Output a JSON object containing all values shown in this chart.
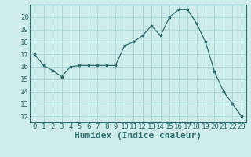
{
  "x": [
    0,
    1,
    2,
    3,
    4,
    5,
    6,
    7,
    8,
    9,
    10,
    11,
    12,
    13,
    14,
    15,
    16,
    17,
    18,
    19,
    20,
    21,
    22,
    23
  ],
  "y": [
    17.0,
    16.1,
    15.7,
    15.2,
    16.0,
    16.1,
    16.1,
    16.1,
    16.1,
    16.1,
    17.7,
    18.0,
    18.5,
    19.3,
    18.5,
    20.0,
    20.6,
    20.6,
    19.5,
    18.0,
    15.6,
    14.0,
    13.0,
    12.0
  ],
  "xlabel": "Humidex (Indice chaleur)",
  "xlim": [
    -0.5,
    23.5
  ],
  "ylim": [
    11.5,
    21.0
  ],
  "yticks": [
    12,
    13,
    14,
    15,
    16,
    17,
    18,
    19,
    20
  ],
  "xticks": [
    0,
    1,
    2,
    3,
    4,
    5,
    6,
    7,
    8,
    9,
    10,
    11,
    12,
    13,
    14,
    15,
    16,
    17,
    18,
    19,
    20,
    21,
    22,
    23
  ],
  "line_color": "#2e6e6e",
  "marker": "*",
  "marker_size": 2.5,
  "bg_color": "#cdecea",
  "grid_color": "#aad6d4",
  "tick_label_fontsize": 6.5,
  "xlabel_fontsize": 8,
  "spine_color": "#2e6e6e"
}
